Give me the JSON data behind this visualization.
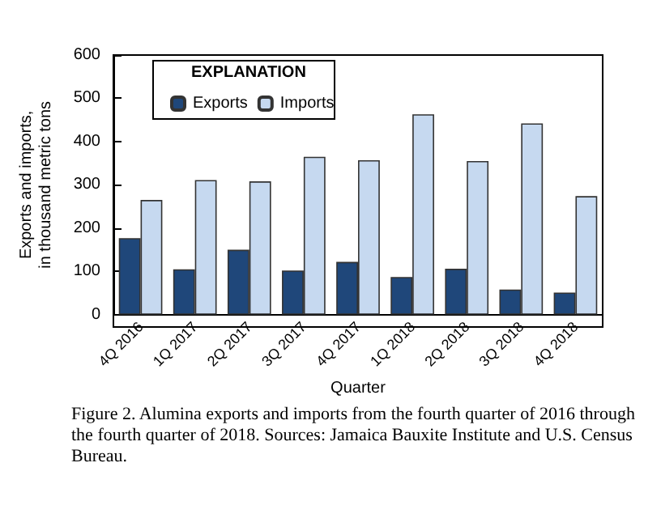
{
  "chart_data": {
    "type": "bar",
    "xlabel": "Quarter",
    "ylabel": "Exports and imports,\nin thousand metric tons",
    "legend_title": "EXPLANATION",
    "legend": "top left",
    "categories": [
      "4Q 2016",
      "1Q 2017",
      "2Q 2017",
      "3Q 2017",
      "4Q 2017",
      "1Q 2018",
      "2Q 2018",
      "3Q 2018",
      "4Q 2018"
    ],
    "series": [
      {
        "name": "Exports",
        "color": "#1f477a",
        "values": [
          177,
          105,
          150,
          102,
          122,
          87,
          106,
          58,
          51
        ]
      },
      {
        "name": "Imports",
        "color": "#c6d9f0",
        "values": [
          265,
          311,
          308,
          365,
          357,
          463,
          355,
          442,
          274
        ]
      }
    ],
    "ylim": [
      0,
      600
    ],
    "yticks": [
      0,
      100,
      200,
      300,
      400,
      500,
      600
    ],
    "grid": false,
    "annotations": [
      "Figure 2. Alumina exports and imports from the fourth quarter of 2016 through the fourth quarter of 2018. Sources: Jamaica Bauxite Institute and U.S. Census Bureau."
    ]
  }
}
